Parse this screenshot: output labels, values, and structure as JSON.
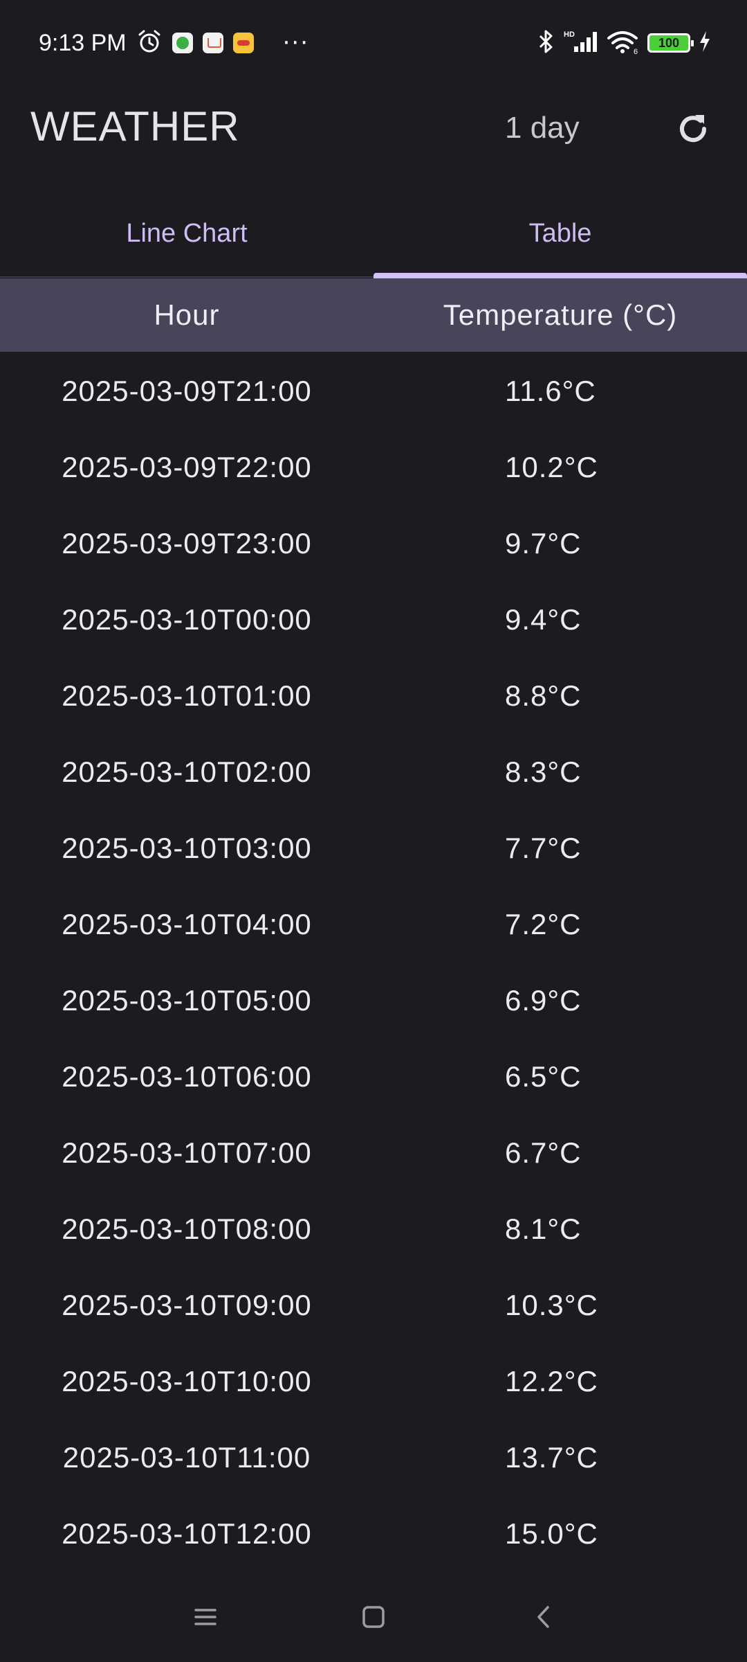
{
  "status_bar": {
    "time": "9:13 PM",
    "more": "···",
    "battery_level": "100",
    "icons": [
      "alarm-icon",
      "notification-app-green-icon",
      "notification-shopping-icon",
      "notification-food-icon",
      "bluetooth-icon",
      "hd-signal-icon",
      "wifi-icon",
      "battery-icon",
      "charging-icon"
    ]
  },
  "app_bar": {
    "title": "WEATHER",
    "range_label": "1 day",
    "refresh_icon": "refresh-icon"
  },
  "tabs": [
    {
      "label": "Line Chart",
      "selected": false
    },
    {
      "label": "Table",
      "selected": true
    }
  ],
  "colors": {
    "background": "#1c1b20",
    "accent": "#d4bff7",
    "header_bg": "#48455a"
  },
  "table": {
    "columns": [
      "Hour",
      "Temperature (°C)"
    ],
    "rows": [
      {
        "hour": "2025-03-09T21:00",
        "temp": "11.6°C"
      },
      {
        "hour": "2025-03-09T22:00",
        "temp": "10.2°C"
      },
      {
        "hour": "2025-03-09T23:00",
        "temp": "9.7°C"
      },
      {
        "hour": "2025-03-10T00:00",
        "temp": "9.4°C"
      },
      {
        "hour": "2025-03-10T01:00",
        "temp": "8.8°C"
      },
      {
        "hour": "2025-03-10T02:00",
        "temp": "8.3°C"
      },
      {
        "hour": "2025-03-10T03:00",
        "temp": "7.7°C"
      },
      {
        "hour": "2025-03-10T04:00",
        "temp": "7.2°C"
      },
      {
        "hour": "2025-03-10T05:00",
        "temp": "6.9°C"
      },
      {
        "hour": "2025-03-10T06:00",
        "temp": "6.5°C"
      },
      {
        "hour": "2025-03-10T07:00",
        "temp": "6.7°C"
      },
      {
        "hour": "2025-03-10T08:00",
        "temp": "8.1°C"
      },
      {
        "hour": "2025-03-10T09:00",
        "temp": "10.3°C"
      },
      {
        "hour": "2025-03-10T10:00",
        "temp": "12.2°C"
      },
      {
        "hour": "2025-03-10T11:00",
        "temp": "13.7°C"
      },
      {
        "hour": "2025-03-10T12:00",
        "temp": "15.0°C"
      }
    ]
  },
  "nav_bar": {
    "icons": [
      "menu-icon",
      "home-icon",
      "back-icon"
    ]
  }
}
